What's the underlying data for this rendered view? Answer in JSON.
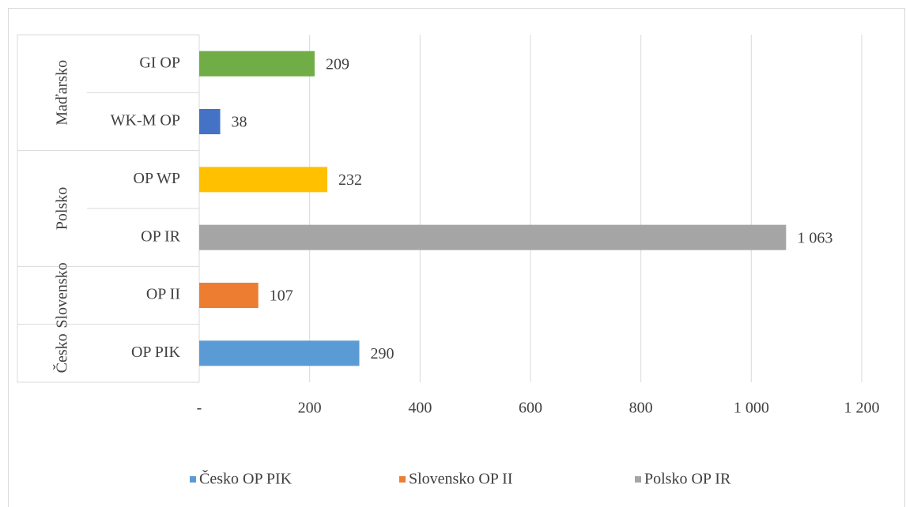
{
  "chart_data": {
    "type": "bar",
    "categories": [
      "GI OP",
      "WK-M OP",
      "OP WP",
      "OP IR",
      "OP II",
      "OP PIK"
    ],
    "values": [
      209,
      38,
      232,
      1063,
      107,
      290
    ],
    "value_labels": [
      "209",
      "38",
      "232",
      "1 063",
      "107",
      "290"
    ],
    "colors": [
      "#70ad47",
      "#4472c4",
      "#ffc000",
      "#a5a5a5",
      "#ed7d31",
      "#5b9bd5"
    ],
    "groups": [
      {
        "label": "Maďarsko",
        "count": 2
      },
      {
        "label": "Polsko",
        "count": 2
      },
      {
        "label": "Slovensko",
        "count": 1
      },
      {
        "label": "Česko",
        "count": 1
      }
    ],
    "xlim": [
      0,
      1200
    ],
    "xticks": [
      {
        "value": 0,
        "label": "-"
      },
      200,
      400,
      600,
      800,
      {
        "value": 1000,
        "label": "1 000"
      },
      {
        "value": 1200,
        "label": "1 200"
      }
    ],
    "grid": true,
    "legend": [
      {
        "name": "Česko OP PIK",
        "color": "#5b9bd5"
      },
      {
        "name": "Slovensko OP II",
        "color": "#ed7d31"
      },
      {
        "name": "Polsko OP IR",
        "color": "#a5a5a5"
      }
    ]
  }
}
